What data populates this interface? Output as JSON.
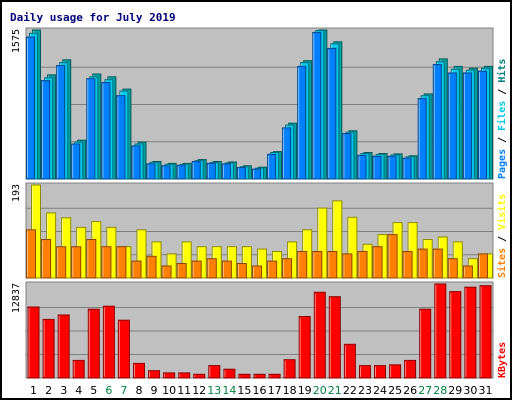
{
  "chart_data": {
    "type": "bar",
    "title": "Daily usage for July 2019",
    "categories": [
      "1",
      "2",
      "3",
      "4",
      "5",
      "6",
      "7",
      "8",
      "9",
      "10",
      "11",
      "12",
      "13",
      "14",
      "15",
      "16",
      "17",
      "18",
      "19",
      "20",
      "21",
      "22",
      "23",
      "24",
      "25",
      "26",
      "27",
      "28",
      "29",
      "30",
      "31"
    ],
    "weekend_days": [
      "6",
      "7",
      "13",
      "14",
      "20",
      "21",
      "27",
      "28"
    ],
    "grid": true,
    "background": "#c0c0c0",
    "panels": [
      {
        "id": "hits",
        "ymax_label": "1575",
        "ymax": 1575,
        "series": [
          {
            "name": "Pages",
            "color": "#0080ff",
            "values": [
              1500,
              1040,
              1200,
              370,
              1060,
              1020,
              880,
              350,
              160,
              140,
              145,
              185,
              165,
              160,
              120,
              105,
              260,
              540,
              1190,
              1550,
              1380,
              480,
              250,
              240,
              240,
              220,
              850,
              1210,
              1120,
              1120,
              1140
            ]
          },
          {
            "name": "Files",
            "color": "#00c8e8",
            "values": [
              1540,
              1070,
              1230,
              390,
              1080,
              1050,
              930,
              370,
              175,
              155,
              155,
              195,
              175,
              170,
              130,
              115,
              280,
              570,
              1230,
              1570,
              1430,
              495,
              270,
              260,
              255,
              235,
              880,
              1240,
              1160,
              1150,
              1170
            ]
          },
          {
            "name": "Hits",
            "color": "#00a0a0",
            "values": [
              1575,
              1100,
              1260,
              410,
              1110,
              1080,
              950,
              390,
              185,
              165,
              165,
              205,
              185,
              180,
              140,
              125,
              290,
              590,
              1250,
              1575,
              1450,
              510,
              280,
              270,
              265,
              245,
              900,
              1270,
              1190,
              1170,
              1190
            ]
          }
        ]
      },
      {
        "id": "visits",
        "ymax_label": "193",
        "ymax": 193,
        "series": [
          {
            "name": "Sites",
            "color": "#ff8000",
            "values": [
              100,
              80,
              65,
              65,
              80,
              65,
              65,
              35,
              45,
              25,
              30,
              35,
              40,
              35,
              30,
              25,
              35,
              40,
              55,
              55,
              55,
              50,
              55,
              65,
              90,
              55,
              60,
              60,
              40,
              25,
              50
            ]
          },
          {
            "name": "Visits",
            "color": "#ffff00",
            "values": [
              193,
              135,
              125,
              105,
              117,
              105,
              65,
              100,
              75,
              50,
              75,
              65,
              65,
              65,
              65,
              60,
              55,
              75,
              100,
              145,
              160,
              126,
              70,
              90,
              115,
              115,
              80,
              85,
              75,
              40,
              50
            ]
          }
        ]
      },
      {
        "id": "kbytes",
        "ymax_label": "12837",
        "ymax": 12837,
        "series": [
          {
            "name": "KBytes",
            "color": "#ff0000",
            "values": [
              9700,
              8000,
              8600,
              2400,
              9400,
              9800,
              7900,
              2000,
              1000,
              700,
              700,
              500,
              1700,
              1200,
              500,
              500,
              500,
              2500,
              8400,
              11700,
              11100,
              4600,
              1700,
              1700,
              1800,
              2400,
              9400,
              12837,
              11800,
              12400,
              12600
            ]
          }
        ]
      }
    ]
  }
}
